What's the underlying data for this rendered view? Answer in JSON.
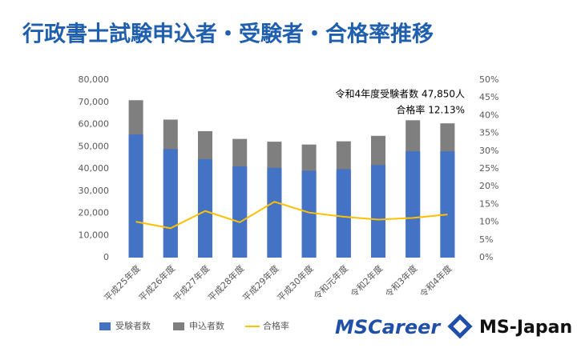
{
  "title": "行政書士試験申込者・受験者・合格率推移",
  "chart_data": {
    "type": "bar",
    "categories": [
      "平成25年度",
      "平成26年度",
      "平成27年度",
      "平成28年度",
      "平成29年度",
      "平成30年度",
      "令和元年度",
      "令和2年度",
      "令和3年度",
      "令和4年度"
    ],
    "series": [
      {
        "name": "受験者数",
        "color": "#4472c4",
        "values": [
          55436,
          48869,
          44366,
          41053,
          40449,
          39105,
          39821,
          41681,
          47870,
          47850
        ]
      },
      {
        "name": "申込者数",
        "color": "#7f7f7f",
        "values": [
          70896,
          62172,
          56965,
          53456,
          52214,
          50926,
          52386,
          54847,
          61869,
          60479
        ]
      },
      {
        "name": "合格率",
        "type": "line",
        "axis": "y2",
        "color": "#ffc000",
        "values": [
          10.1,
          8.27,
          13.12,
          9.95,
          15.72,
          12.68,
          11.52,
          10.69,
          11.18,
          12.13
        ]
      }
    ],
    "ylim": [
      0,
      80000
    ],
    "yticks": [
      0,
      {
        "value": 10000,
        "label": "10,000"
      },
      {
        "value": 20000,
        "label": "20,000"
      },
      {
        "value": 30000,
        "label": "30,000"
      },
      {
        "value": 40000,
        "label": "40,000"
      },
      {
        "value": 50000,
        "label": "50,000"
      },
      {
        "value": 60000,
        "label": "60,000"
      },
      {
        "value": 70000,
        "label": "70,000"
      },
      {
        "value": 80000,
        "label": "80,000"
      }
    ],
    "y2lim": [
      0,
      50
    ],
    "y2ticks": [
      {
        "value": 0,
        "label": "0%"
      },
      {
        "value": 5,
        "label": "5%"
      },
      {
        "value": 10,
        "label": "10%"
      },
      {
        "value": 15,
        "label": "15%"
      },
      {
        "value": 20,
        "label": "20%"
      },
      {
        "value": 25,
        "label": "25%"
      },
      {
        "value": 30,
        "label": "30%"
      },
      {
        "value": 35,
        "label": "35%"
      },
      {
        "value": 40,
        "label": "40%"
      },
      {
        "value": 45,
        "label": "45%"
      },
      {
        "value": 50,
        "label": "50%"
      }
    ],
    "annotations": [
      "令和4年度受験者数 47,850人",
      "合格率 12.13%"
    ],
    "legend": "bottom"
  },
  "logo": {
    "left": "MSCareer",
    "right": "MS-Japan"
  }
}
